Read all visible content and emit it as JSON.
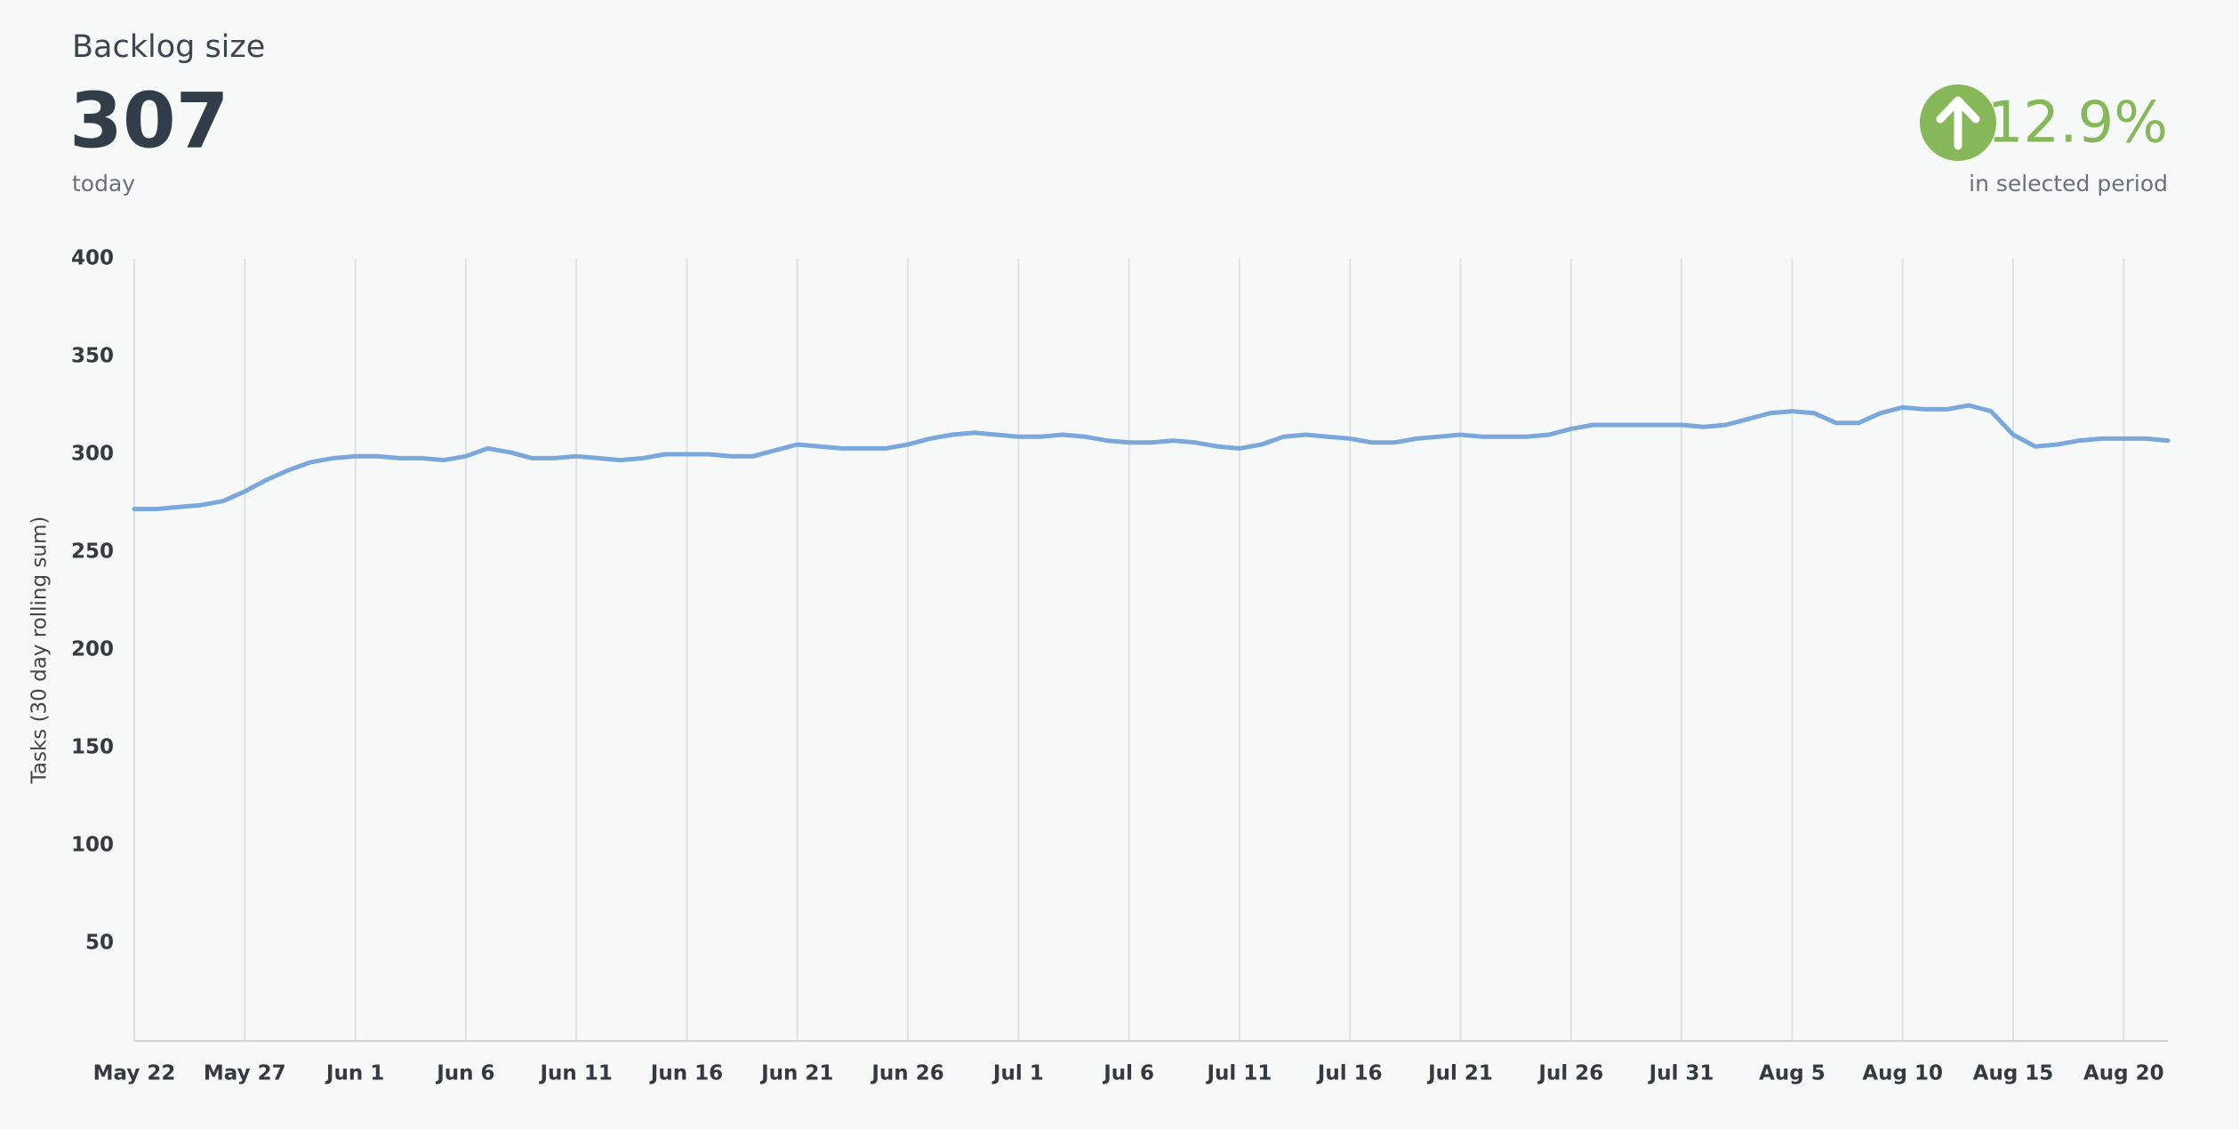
{
  "header": {
    "title": "Backlog size",
    "value": "307",
    "value_caption": "today",
    "change": "12.9%",
    "change_caption": "in selected period"
  },
  "chart_data": {
    "type": "line",
    "y_label": "Tasks (30 day rolling sum)",
    "x": [
      "May 22",
      "May 23",
      "May 24",
      "May 25",
      "May 26",
      "May 27",
      "May 28",
      "May 29",
      "May 30",
      "May 31",
      "Jun 1",
      "Jun 2",
      "Jun 3",
      "Jun 4",
      "Jun 5",
      "Jun 6",
      "Jun 7",
      "Jun 8",
      "Jun 9",
      "Jun 10",
      "Jun 11",
      "Jun 12",
      "Jun 13",
      "Jun 14",
      "Jun 15",
      "Jun 16",
      "Jun 17",
      "Jun 18",
      "Jun 19",
      "Jun 20",
      "Jun 21",
      "Jun 22",
      "Jun 23",
      "Jun 24",
      "Jun 25",
      "Jun 26",
      "Jun 27",
      "Jun 28",
      "Jun 29",
      "Jun 30",
      "Jul 1",
      "Jul 2",
      "Jul 3",
      "Jul 4",
      "Jul 5",
      "Jul 6",
      "Jul 7",
      "Jul 8",
      "Jul 9",
      "Jul 10",
      "Jul 11",
      "Jul 12",
      "Jul 13",
      "Jul 14",
      "Jul 15",
      "Jul 16",
      "Jul 17",
      "Jul 18",
      "Jul 19",
      "Jul 20",
      "Jul 21",
      "Jul 22",
      "Jul 23",
      "Jul 24",
      "Jul 25",
      "Jul 26",
      "Jul 27",
      "Jul 28",
      "Jul 29",
      "Jul 30",
      "Jul 31",
      "Aug 1",
      "Aug 2",
      "Aug 3",
      "Aug 4",
      "Aug 5",
      "Aug 6",
      "Aug 7",
      "Aug 8",
      "Aug 9",
      "Aug 10",
      "Aug 11",
      "Aug 12",
      "Aug 13",
      "Aug 14",
      "Aug 15",
      "Aug 16",
      "Aug 17",
      "Aug 18",
      "Aug 19",
      "Aug 20",
      "Aug 21",
      "Aug 22"
    ],
    "values": [
      272,
      272,
      273,
      274,
      276,
      281,
      287,
      292,
      296,
      298,
      299,
      299,
      298,
      298,
      297,
      299,
      303,
      301,
      298,
      298,
      299,
      298,
      297,
      298,
      300,
      300,
      300,
      299,
      299,
      302,
      305,
      304,
      303,
      303,
      303,
      305,
      308,
      310,
      311,
      310,
      309,
      309,
      310,
      309,
      307,
      306,
      306,
      307,
      306,
      304,
      303,
      305,
      309,
      310,
      309,
      308,
      306,
      306,
      308,
      309,
      310,
      309,
      309,
      309,
      310,
      313,
      315,
      315,
      315,
      315,
      315,
      314,
      315,
      318,
      321,
      322,
      321,
      316,
      316,
      321,
      324,
      323,
      323,
      325,
      322,
      310,
      304,
      305,
      307,
      308,
      308,
      308,
      307
    ],
    "color": "#7aa7dc",
    "xticks": [
      "May 22",
      "May 27",
      "Jun 1",
      "Jun 6",
      "Jun 11",
      "Jun 16",
      "Jun 21",
      "Jun 26",
      "Jul 1",
      "Jul 6",
      "Jul 11",
      "Jul 16",
      "Jul 21",
      "Jul 26",
      "Jul 31",
      "Aug 5",
      "Aug 10",
      "Aug 15",
      "Aug 20"
    ],
    "ylim": [
      0,
      400
    ],
    "yticks": [
      50,
      100,
      150,
      200,
      250,
      300,
      350,
      400
    ],
    "grid": true
  }
}
